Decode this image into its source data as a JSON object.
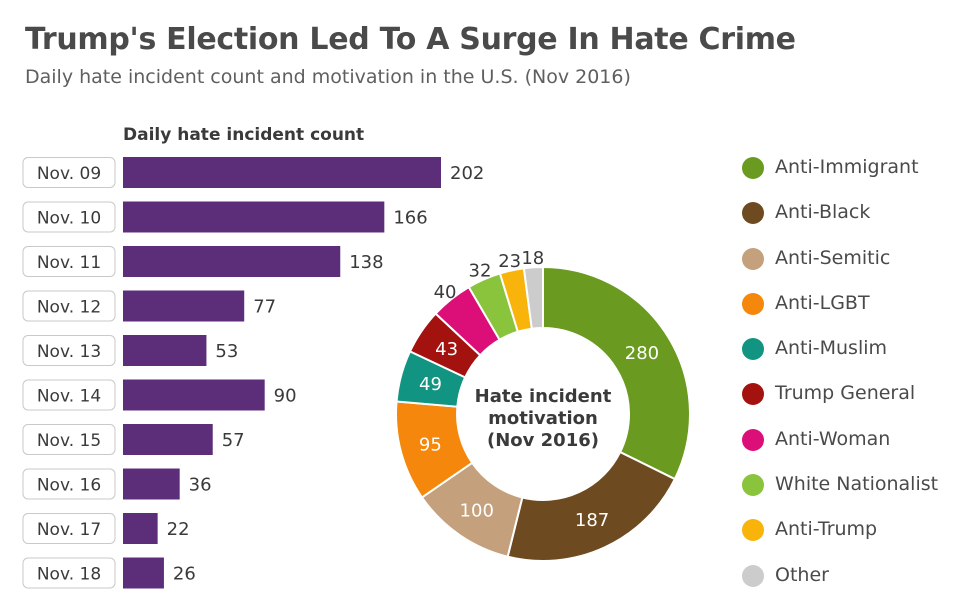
{
  "header": {
    "title": "Trump's Election Led To A Surge In Hate Crime",
    "subtitle": "Daily hate incident count and motivation in the U.S. (Nov 2016)"
  },
  "chart_data": [
    {
      "type": "bar",
      "orientation": "horizontal",
      "title": "Daily hate incident count",
      "categories": [
        "Nov. 09",
        "Nov. 10",
        "Nov. 11",
        "Nov. 12",
        "Nov. 13",
        "Nov. 14",
        "Nov. 15",
        "Nov. 16",
        "Nov. 17",
        "Nov. 18"
      ],
      "values": [
        202,
        166,
        138,
        77,
        53,
        90,
        57,
        36,
        22,
        26
      ],
      "color": "#5c2d78",
      "data_labels": true
    },
    {
      "type": "pie",
      "variant": "donut",
      "center_label": [
        "Hate incident",
        "motivation",
        "(Nov 2016)"
      ],
      "categories": [
        "Anti-Immigrant",
        "Anti-Black",
        "Anti-Semitic",
        "Anti-LGBT",
        "Anti-Muslim",
        "Trump General",
        "Anti-Woman",
        "White Nationalist",
        "Anti-Trump",
        "Other"
      ],
      "values": [
        280,
        187,
        100,
        95,
        49,
        43,
        40,
        32,
        23,
        18
      ],
      "colors": [
        "#6a9a1f",
        "#6e4a21",
        "#c4a07c",
        "#f5870c",
        "#119481",
        "#a3120f",
        "#dc0f78",
        "#8ac43c",
        "#f9b40c",
        "#cccccc"
      ],
      "legend_position": "right"
    }
  ]
}
